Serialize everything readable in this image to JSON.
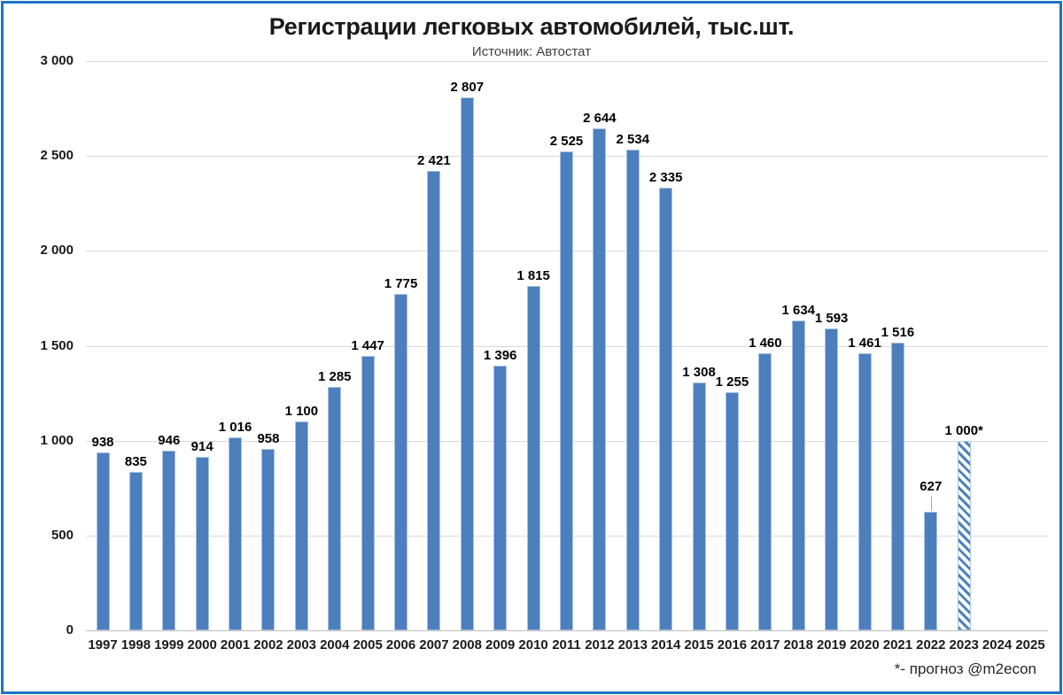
{
  "title": "Регистрации легковых автомобилей, тыс.шт.",
  "subtitle": "Источник: Автостат",
  "footnote": "*- прогноз @m2econ",
  "colors": {
    "frame": "#1b74c5",
    "bar_fill": "#4d7ebe",
    "bar_edge": "#a9c4e1",
    "hatch_stripe": "#4f81bd",
    "gridline": "#d9d9d9",
    "axis": "#bfbfbf",
    "leader_line": "#a6a6a6",
    "text": "#1a1a1a"
  },
  "chart_data": {
    "type": "bar",
    "title": "Регистрации легковых автомобилей, тыс.шт.",
    "subtitle": "Источник: Автостат",
    "xlabel": "",
    "ylabel": "",
    "ylim": [
      0,
      3000
    ],
    "yticks": [
      0,
      500,
      1000,
      1500,
      2000,
      2500,
      3000
    ],
    "ytick_labels": [
      "0",
      "500",
      "1 000",
      "1 500",
      "2 000",
      "2 500",
      "3 000"
    ],
    "grid": true,
    "legend_position": "none",
    "categories": [
      "1997",
      "1998",
      "1999",
      "2000",
      "2001",
      "2002",
      "2003",
      "2004",
      "2005",
      "2006",
      "2007",
      "2008",
      "2009",
      "2010",
      "2011",
      "2012",
      "2013",
      "2014",
      "2015",
      "2016",
      "2017",
      "2018",
      "2019",
      "2020",
      "2021",
      "2022",
      "2023",
      "2024",
      "2025"
    ],
    "values": [
      938,
      835,
      946,
      914,
      1016,
      958,
      1100,
      1285,
      1447,
      1775,
      2421,
      2807,
      1396,
      1815,
      2525,
      2644,
      2534,
      2335,
      1308,
      1255,
      1460,
      1634,
      1593,
      1461,
      1516,
      627,
      1000,
      null,
      null
    ],
    "data_labels": [
      "938",
      "835",
      "946",
      "914",
      "1 016",
      "958",
      "1 100",
      "1 285",
      "1 447",
      "1 775",
      "2 421",
      "2 807",
      "1 396",
      "1 815",
      "2 525",
      "2 644",
      "2 534",
      "2 335",
      "1 308",
      "1 255",
      "1 460",
      "1 634",
      "1 593",
      "1 461",
      "1 516",
      "627",
      "1 000*",
      null,
      null
    ],
    "forecast_category": "2023",
    "forecast_style": "diagonal-hatch",
    "leader_line_category": "2022"
  }
}
